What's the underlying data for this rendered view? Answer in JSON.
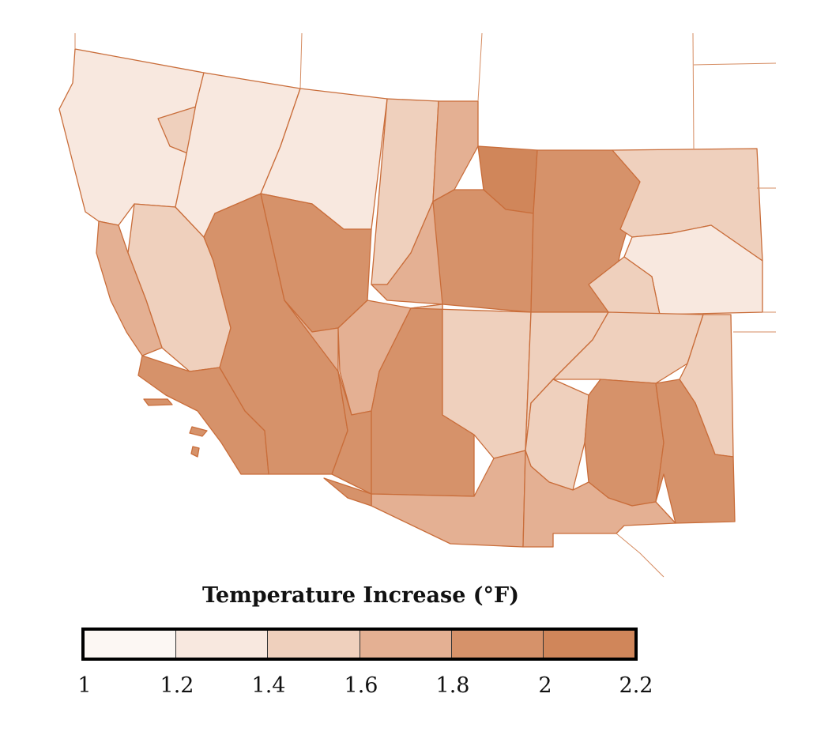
{
  "legend": {
    "title": "Temperature Increase (°F)",
    "bins": [
      {
        "from": 1.0,
        "to": 1.2,
        "color": "#fcf7f3"
      },
      {
        "from": 1.2,
        "to": 1.4,
        "color": "#f8e8df"
      },
      {
        "from": 1.4,
        "to": 1.6,
        "color": "#efd0bd"
      },
      {
        "from": 1.6,
        "to": 1.8,
        "color": "#e4b093"
      },
      {
        "from": 1.8,
        "to": 2.0,
        "color": "#d6926a"
      },
      {
        "from": 2.0,
        "to": 2.2,
        "color": "#d0865a"
      }
    ],
    "ticks": [
      "1",
      "1.2",
      "1.4",
      "1.6",
      "1.8",
      "2",
      "2.2"
    ]
  },
  "colors": {
    "boundary": "#c96d3a"
  }
}
